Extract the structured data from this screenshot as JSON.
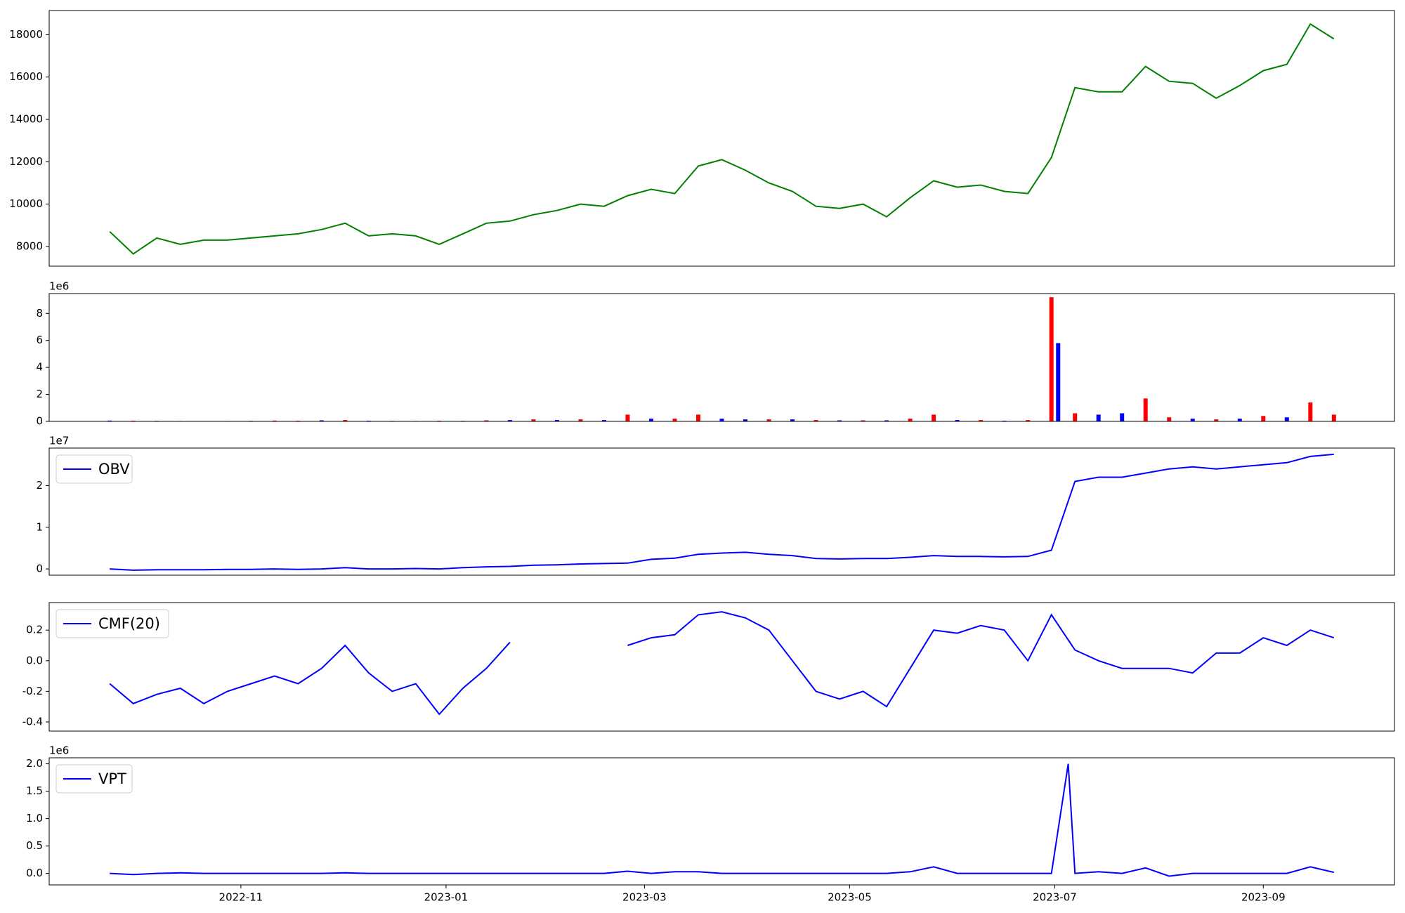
{
  "chart_data": [
    {
      "type": "line",
      "color": "green",
      "x": [
        19258,
        19265,
        19272,
        19279,
        19286,
        19293,
        19300,
        19307,
        19314,
        19321,
        19328,
        19335,
        19342,
        19349,
        19356,
        19363,
        19370,
        19377,
        19384,
        19391,
        19398,
        19405,
        19412,
        19419,
        19426,
        19433,
        19440,
        19447,
        19454,
        19461,
        19468,
        19475,
        19482,
        19489,
        19496,
        19503,
        19510,
        19517,
        19524,
        19531,
        19538,
        19545,
        19552,
        19559,
        19566,
        19573,
        19580,
        19587,
        19594,
        19601,
        19608,
        19615,
        19622
      ],
      "values": [
        8700,
        7650,
        8400,
        8100,
        8300,
        8300,
        8400,
        8500,
        8600,
        8800,
        9100,
        8500,
        8600,
        8500,
        8100,
        8600,
        9100,
        9200,
        9500,
        9700,
        10000,
        9900,
        10400,
        10700,
        10500,
        11800,
        12100,
        11600,
        11000,
        10600,
        9900,
        9800,
        10000,
        9400,
        10300,
        11100,
        10800,
        10900,
        10600,
        10500,
        12200,
        15500,
        15300,
        15300,
        16500,
        15800,
        15700,
        15000,
        15600,
        16300,
        16600,
        18500,
        17800
      ],
      "xlim": [
        19240,
        19640
      ],
      "ylim": [
        7070,
        19140
      ],
      "yticks": [
        8000,
        10000,
        12000,
        14000,
        16000,
        18000
      ]
    },
    {
      "type": "bar",
      "offset_label": "1e6",
      "x": [
        19258,
        19265,
        19272,
        19279,
        19286,
        19293,
        19300,
        19307,
        19314,
        19321,
        19328,
        19335,
        19342,
        19349,
        19356,
        19363,
        19370,
        19377,
        19384,
        19391,
        19398,
        19405,
        19412,
        19419,
        19426,
        19433,
        19440,
        19447,
        19454,
        19461,
        19468,
        19475,
        19482,
        19489,
        19496,
        19503,
        19510,
        19517,
        19524,
        19531,
        19538,
        19540,
        19545,
        19552,
        19559,
        19566,
        19573,
        19580,
        19587,
        19594,
        19601,
        19608,
        19615,
        19622
      ],
      "values": [
        60000,
        50000,
        40000,
        30000,
        20000,
        30000,
        40000,
        60000,
        50000,
        80000,
        100000,
        50000,
        40000,
        30000,
        50000,
        40000,
        80000,
        100000,
        150000,
        100000,
        150000,
        100000,
        500000,
        200000,
        200000,
        500000,
        200000,
        150000,
        150000,
        150000,
        100000,
        80000,
        80000,
        80000,
        200000,
        500000,
        100000,
        100000,
        50000,
        100000,
        9200000,
        5800000,
        600000,
        500000,
        600000,
        1700000,
        300000,
        200000,
        150000,
        200000,
        400000,
        300000,
        1400000,
        500000
      ],
      "colors": [
        "blue",
        "red",
        "blue",
        "red",
        "blue",
        "red",
        "blue",
        "red",
        "red",
        "blue",
        "red",
        "blue",
        "red",
        "blue",
        "red",
        "blue",
        "red",
        "blue",
        "red",
        "blue",
        "red",
        "blue",
        "red",
        "blue",
        "red",
        "red",
        "blue",
        "blue",
        "red",
        "blue",
        "red",
        "blue",
        "red",
        "blue",
        "red",
        "red",
        "blue",
        "red",
        "blue",
        "red",
        "red",
        "blue",
        "red",
        "blue",
        "blue",
        "red",
        "red",
        "blue",
        "red",
        "blue",
        "red",
        "blue",
        "red",
        "red"
      ],
      "xlim": [
        19240,
        19640
      ],
      "ylim": [
        0,
        9470000
      ],
      "yticks": [
        0,
        {
          "value": 2000000,
          "label": "2"
        },
        {
          "value": 4000000,
          "label": "4"
        },
        {
          "value": 6000000,
          "label": "6"
        },
        {
          "value": 8000000,
          "label": "8"
        }
      ]
    },
    {
      "type": "line",
      "offset_label": "1e7",
      "legend": "upper left",
      "x": [
        19258,
        19265,
        19272,
        19279,
        19286,
        19293,
        19300,
        19307,
        19314,
        19321,
        19328,
        19335,
        19342,
        19349,
        19356,
        19363,
        19370,
        19377,
        19384,
        19391,
        19398,
        19405,
        19412,
        19419,
        19426,
        19433,
        19440,
        19447,
        19454,
        19461,
        19468,
        19475,
        19482,
        19489,
        19496,
        19503,
        19510,
        19517,
        19524,
        19531,
        19538,
        19545,
        19552,
        19559,
        19566,
        19573,
        19580,
        19587,
        19594,
        19601,
        19608,
        19615,
        19622
      ],
      "series": [
        {
          "name": "OBV",
          "color": "blue",
          "values": [
            0,
            -300000,
            -200000,
            -200000,
            -200000,
            -100000,
            -100000,
            0,
            -100000,
            0,
            300000,
            0,
            0,
            100000,
            0,
            300000,
            500000,
            600000,
            900000,
            1000000,
            1200000,
            1300000,
            1400000,
            2300000,
            2600000,
            3500000,
            3800000,
            4000000,
            3500000,
            3200000,
            2500000,
            2400000,
            2500000,
            2500000,
            2800000,
            3200000,
            3000000,
            3000000,
            2900000,
            3000000,
            4500000,
            21000000,
            22000000,
            22000000,
            23000000,
            24000000,
            24500000,
            24000000,
            24500000,
            25000000,
            25500000,
            27000000,
            27500000
          ]
        }
      ],
      "xlim": [
        19240,
        19640
      ],
      "ylim": [
        -1500000,
        29000000
      ],
      "yticks": [
        0,
        {
          "value": 10000000,
          "label": "1"
        },
        {
          "value": 20000000,
          "label": "2"
        }
      ]
    },
    {
      "type": "line",
      "legend": "upper left",
      "x": [
        19258,
        19265,
        19272,
        19279,
        19286,
        19293,
        19300,
        19307,
        19314,
        19321,
        19328,
        19335,
        19342,
        19349,
        19356,
        19363,
        19370,
        19377,
        19384,
        19391,
        19398,
        19405,
        19412,
        19419,
        19426,
        19433,
        19440,
        19447,
        19454,
        19461,
        19468,
        19475,
        19482,
        19489,
        19496,
        19503,
        19510,
        19517,
        19524,
        19531,
        19538,
        19545,
        19552,
        19559,
        19566,
        19573,
        19580,
        19587,
        19594,
        19601,
        19608,
        19615,
        19622
      ],
      "series": [
        {
          "name": "CMF(20)",
          "color": "blue",
          "values": [
            -0.15,
            -0.28,
            -0.22,
            -0.18,
            -0.28,
            -0.2,
            -0.15,
            -0.1,
            -0.15,
            -0.05,
            0.1,
            -0.08,
            -0.2,
            -0.15,
            -0.35,
            -0.18,
            -0.05,
            0.12,
            null,
            null,
            null,
            null,
            0.1,
            0.15,
            0.17,
            0.3,
            0.32,
            0.28,
            0.2,
            0.0,
            -0.2,
            -0.25,
            -0.2,
            -0.3,
            -0.05,
            0.2,
            0.18,
            0.23,
            0.2,
            0.0,
            0.3,
            0.07,
            0.0,
            -0.05,
            -0.05,
            -0.05,
            -0.08,
            0.05,
            0.05,
            0.15,
            0.1,
            0.2,
            0.15
          ]
        }
      ],
      "xlim": [
        19240,
        19640
      ],
      "ylim": [
        -0.46,
        0.38
      ],
      "yticks": [
        -0.4,
        -0.2,
        {
          "value": 0,
          "label": "0.0"
        },
        0.2
      ]
    },
    {
      "type": "line",
      "offset_label": "1e6",
      "legend": "upper left",
      "x": [
        19258,
        19265,
        19272,
        19279,
        19286,
        19293,
        19300,
        19307,
        19314,
        19321,
        19328,
        19335,
        19342,
        19349,
        19356,
        19363,
        19370,
        19377,
        19384,
        19391,
        19398,
        19405,
        19412,
        19419,
        19426,
        19433,
        19440,
        19447,
        19454,
        19461,
        19468,
        19475,
        19482,
        19489,
        19496,
        19503,
        19510,
        19517,
        19524,
        19531,
        19538,
        19543,
        19545,
        19552,
        19559,
        19566,
        19573,
        19580,
        19587,
        19594,
        19601,
        19608,
        19615,
        19622
      ],
      "series": [
        {
          "name": "VPT",
          "color": "blue",
          "values": [
            0,
            -20000,
            0,
            10000,
            0,
            0,
            0,
            0,
            0,
            0,
            10000,
            0,
            0,
            0,
            0,
            0,
            0,
            0,
            0,
            0,
            0,
            0,
            40000,
            0,
            30000,
            30000,
            0,
            0,
            0,
            0,
            0,
            0,
            0,
            0,
            30000,
            120000,
            0,
            0,
            0,
            0,
            0,
            2000000,
            0,
            30000,
            0,
            100000,
            -50000,
            0,
            0,
            0,
            0,
            0,
            120000,
            20000
          ]
        }
      ],
      "xlim": [
        19240,
        19640
      ],
      "ylim": [
        -210000,
        2110000
      ],
      "yticks": [
        {
          "value": 0,
          "label": "0.0"
        },
        {
          "value": 500000,
          "label": "0.5"
        },
        {
          "value": 1000000,
          "label": "1.0"
        },
        {
          "value": 1500000,
          "label": "1.5"
        },
        {
          "value": 2000000,
          "label": "2.0"
        }
      ],
      "xticks": [
        {
          "value": 19297,
          "label": "2022-11"
        },
        {
          "value": 19358,
          "label": "2023-01"
        },
        {
          "value": 19417,
          "label": "2023-03"
        },
        {
          "value": 19478,
          "label": "2023-05"
        },
        {
          "value": 19539,
          "label": "2023-07"
        },
        {
          "value": 19601,
          "label": "2023-09"
        }
      ]
    }
  ]
}
